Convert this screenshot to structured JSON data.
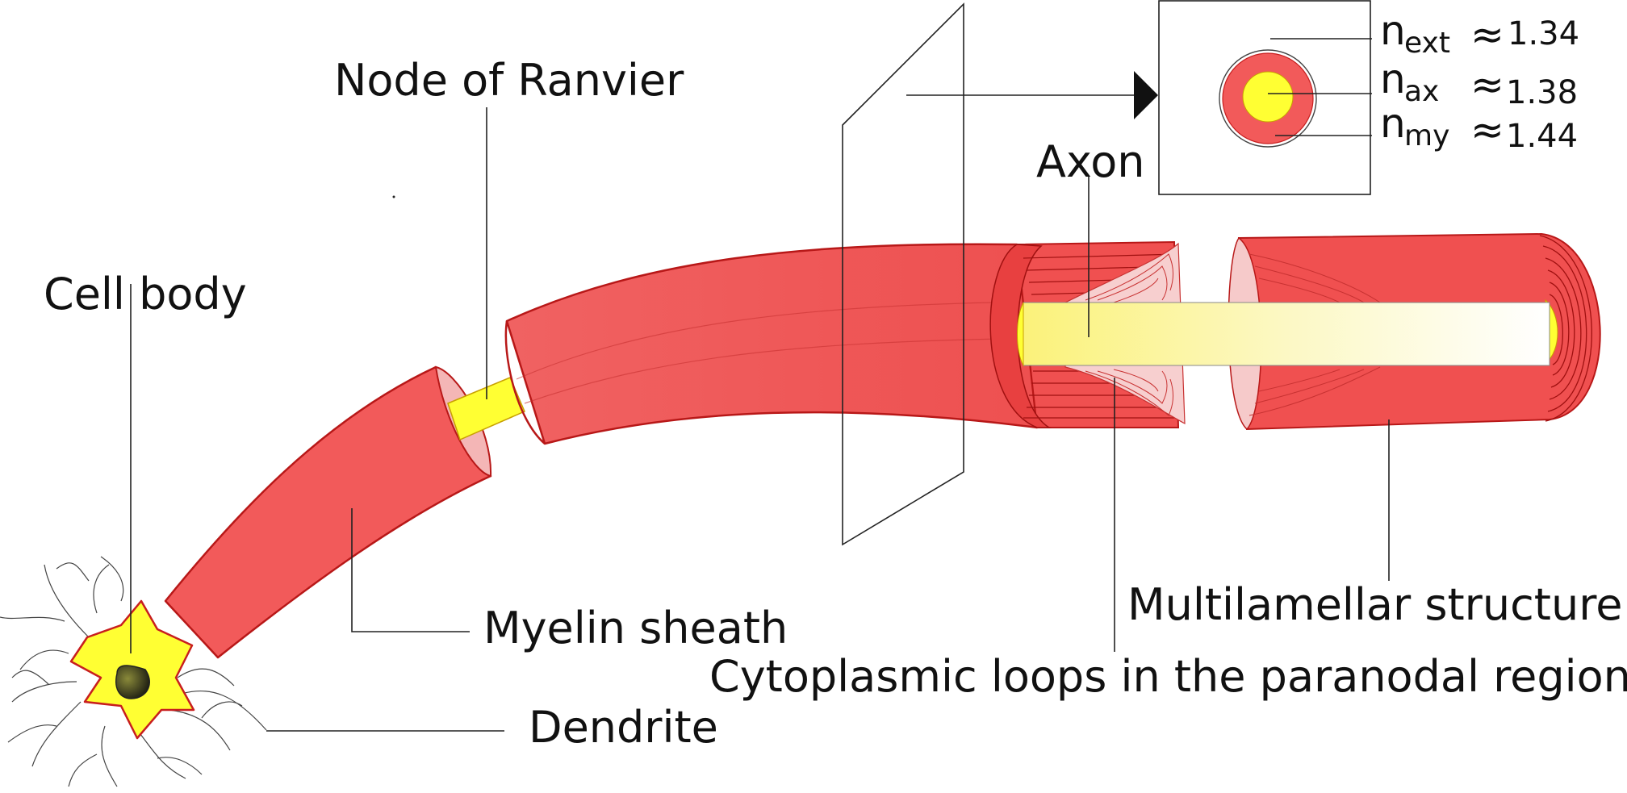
{
  "labels": {
    "node_of_ranvier": "Node of Ranvier",
    "cell_body": "Cell body",
    "axon": "Axon",
    "myelin_sheath": "Myelin sheath",
    "multilamellar_structure": "Multilamellar structure",
    "cytoplasmic_loops": "Cytoplasmic loops in the paranodal region",
    "dendrite": "Dendrite"
  },
  "refractive_indices": [
    {
      "symbol": "n",
      "subscript": "ext",
      "relation": "≈",
      "value": "1.34"
    },
    {
      "symbol": "n",
      "subscript": "ax",
      "relation": "≈",
      "value": "1.38"
    },
    {
      "symbol": "n",
      "subscript": "my",
      "relation": "≈",
      "value": "1.44"
    }
  ],
  "colors": {
    "myelin": "#f25a5a",
    "myelin_dark": "#c81e1e",
    "axon": "#ffff33",
    "axon_light": "#fdfbc8",
    "nucleus": "#2a2a1a",
    "lamella": "#f6c7c7"
  }
}
